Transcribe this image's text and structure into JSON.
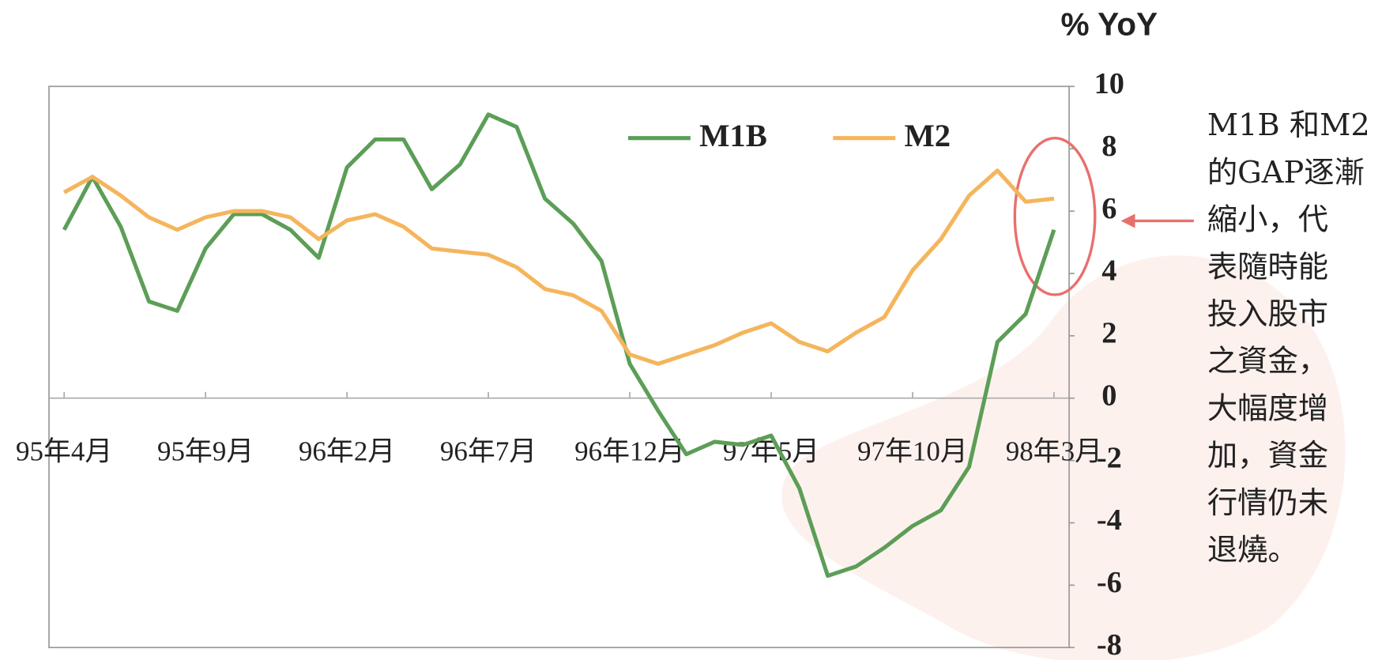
{
  "chart_data": {
    "type": "line",
    "title": "% YoY",
    "categories": [
      "95年4月",
      null,
      null,
      null,
      null,
      "95年9月",
      null,
      null,
      null,
      null,
      "96年2月",
      null,
      null,
      null,
      null,
      "96年7月",
      null,
      null,
      null,
      null,
      "96年12月",
      null,
      null,
      null,
      null,
      "97年5月",
      null,
      null,
      null,
      null,
      "97年10月",
      null,
      null,
      null,
      null,
      "98年3月"
    ],
    "series": [
      {
        "name": "M1B",
        "color": "#5c9e57",
        "values": [
          5.4,
          7.1,
          5.5,
          3.1,
          2.8,
          4.8,
          5.9,
          5.9,
          5.4,
          4.5,
          7.4,
          8.3,
          8.3,
          6.7,
          7.5,
          9.1,
          8.7,
          6.4,
          5.6,
          4.4,
          1.1,
          -0.4,
          -1.8,
          -1.4,
          -1.5,
          -1.2,
          -2.9,
          -5.7,
          -5.4,
          -4.8,
          -4.1,
          -3.6,
          -2.2,
          1.8,
          2.7,
          5.4
        ]
      },
      {
        "name": "M2",
        "color": "#f5b55c",
        "values": [
          6.6,
          7.1,
          6.5,
          5.8,
          5.4,
          5.8,
          6.0,
          6.0,
          5.8,
          5.1,
          5.7,
          5.9,
          5.5,
          4.8,
          4.7,
          4.6,
          4.2,
          3.5,
          3.3,
          2.8,
          1.4,
          1.1,
          1.4,
          1.7,
          2.1,
          2.4,
          1.8,
          1.5,
          2.1,
          2.6,
          4.1,
          5.1,
          6.5,
          7.3,
          6.3,
          6.4
        ]
      }
    ],
    "ylim": [
      -8,
      10
    ],
    "yticks": [
      -8,
      -6,
      -4,
      -2,
      0,
      2,
      4,
      6,
      8,
      10
    ],
    "grid": false,
    "legend": "top",
    "annotation": [
      "M1B 和M2",
      "的GAP逐漸",
      "縮小，代",
      "表隨時能",
      "投入股市",
      "之資金，",
      "大幅度增",
      "加，資金",
      "行情仍未",
      "退燒。"
    ]
  }
}
